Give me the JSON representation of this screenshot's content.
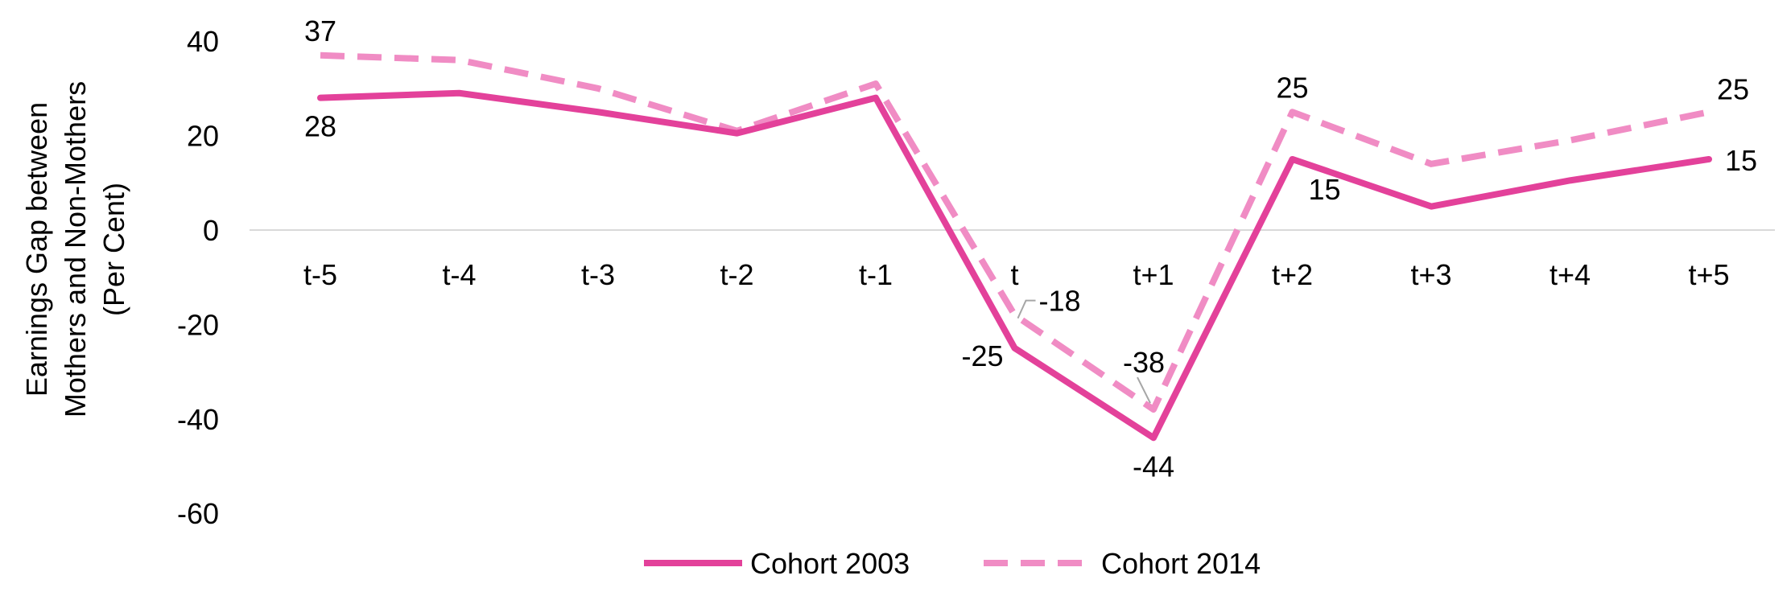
{
  "chart_data": {
    "type": "line",
    "title": "",
    "ylabel": [
      "Earnings Gap between",
      "Mothers and Non-Mothers",
      "(Per Cent)"
    ],
    "xlabel": "",
    "categories": [
      "t-5",
      "t-4",
      "t-3",
      "t-2",
      "t-1",
      "t",
      "t+1",
      "t+2",
      "t+3",
      "t+4",
      "t+5"
    ],
    "ylim": [
      -60,
      40
    ],
    "yticks": [
      "40",
      "20",
      "0",
      "-20",
      "-40",
      "-60"
    ],
    "ytick_values": [
      40,
      20,
      0,
      -20,
      -40,
      -60
    ],
    "grid": false,
    "legend_position": "bottom",
    "series": [
      {
        "name": "Cohort 2003",
        "color": "#e3419a",
        "dash": "solid",
        "values": [
          28,
          29,
          25,
          20.5,
          28,
          -25,
          -44,
          15,
          5,
          10.5,
          15
        ],
        "labels": [
          {
            "index": 0,
            "text": "28",
            "pos": "below"
          },
          {
            "index": 5,
            "text": "-25",
            "pos": "left"
          },
          {
            "index": 6,
            "text": "-44",
            "pos": "below"
          },
          {
            "index": 7,
            "text": "15",
            "pos": "below-right"
          },
          {
            "index": 10,
            "text": "15",
            "pos": "right"
          }
        ]
      },
      {
        "name": "Cohort 2014",
        "color": "#f08cc4",
        "dash": "dashed",
        "values": [
          37,
          36,
          30,
          21,
          31,
          -18,
          -38,
          25,
          14,
          19,
          25
        ],
        "labels": [
          {
            "index": 0,
            "text": "37",
            "pos": "above"
          },
          {
            "index": 5,
            "text": "-18",
            "pos": "leader-right"
          },
          {
            "index": 6,
            "text": "-38",
            "pos": "leader-above"
          },
          {
            "index": 7,
            "text": "25",
            "pos": "above"
          },
          {
            "index": 10,
            "text": "25",
            "pos": "above-right"
          }
        ]
      }
    ]
  }
}
